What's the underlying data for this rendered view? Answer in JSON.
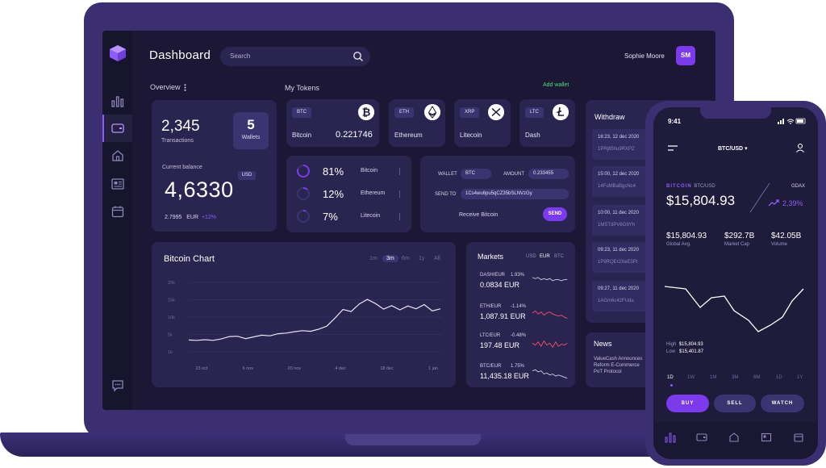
{
  "dashboard": {
    "title": "Dashboard",
    "search_placeholder": "Search",
    "user_name": "Sophie Moore",
    "user_initials": "SM"
  },
  "overview": {
    "label": "Overview",
    "transactions_value": "2,345",
    "transactions_label": "Transactions",
    "wallets_value": "5",
    "wallets_label": "Wallets",
    "current_balance_label": "Current balance",
    "currency_badge": "USD",
    "balance_value": "4,6330",
    "sub_amount": "2.7995",
    "sub_currency": "EUR",
    "sub_change": "+12%"
  },
  "tokens": {
    "label": "My Tokens",
    "add_wallet": "Add wallet",
    "items": [
      {
        "symbol": "BTC",
        "name": "Bitcoin",
        "value": "0.221746",
        "icon": "bitcoin-icon"
      },
      {
        "symbol": "ETH",
        "name": "Ethereum",
        "value": "",
        "icon": "ethereum-icon"
      },
      {
        "symbol": "XRP",
        "name": "Litecoin",
        "value": "",
        "icon": "xrp-icon"
      },
      {
        "symbol": "LTC",
        "name": "Dash",
        "value": "",
        "icon": "litecoin-icon"
      }
    ]
  },
  "allocation": [
    {
      "percent": "81%",
      "coin": "Bitcoin",
      "fraction": 0.81
    },
    {
      "percent": "12%",
      "coin": "Ethereum",
      "fraction": 0.12
    },
    {
      "percent": "7%",
      "coin": "Litecoin",
      "fraction": 0.07
    }
  ],
  "send": {
    "wallet_label": "WALLET",
    "wallet_value": "BTC",
    "amount_label": "AMOUNT",
    "amount_value": "0.233455",
    "send_to_label": "SEND TO",
    "send_to_value": "1Cs4wu6pu5qCZ35bSLNVzGy",
    "receive_label": "Receive Bitcoin",
    "send_button": "SEND"
  },
  "bitcoin_chart": {
    "title": "Bitcoin Chart",
    "ranges": [
      "1m",
      "3m",
      "6m",
      "1y",
      "All"
    ],
    "active_range": "3m",
    "y_ticks": [
      "20k",
      "15k",
      "10k",
      "5k",
      "1k"
    ],
    "x_ticks": [
      "23 oct",
      "6 nov",
      "20 nov",
      "4 dec",
      "18 dec",
      "1 jan"
    ]
  },
  "chart_data": {
    "type": "line",
    "title": "Bitcoin Chart",
    "xlabel": "",
    "ylabel": "",
    "x_ticks": [
      "23 oct",
      "6 nov",
      "20 nov",
      "4 dec",
      "18 dec",
      "1 jan"
    ],
    "y_ticks": [
      "1k",
      "5k",
      "10k",
      "15k",
      "20k"
    ],
    "ylim": [
      0,
      20000
    ],
    "values": [
      3400,
      3300,
      3500,
      3300,
      3700,
      4400,
      4500,
      3800,
      4300,
      4800,
      4600,
      5200,
      5400,
      5800,
      6100,
      5900,
      6500,
      7400,
      9700,
      12200,
      11600,
      13800,
      15100,
      13900,
      12300,
      13300,
      12100,
      13200,
      12400,
      13600,
      11800,
      12400
    ]
  },
  "markets": {
    "title": "Markets",
    "currencies": [
      "USD",
      "EUR",
      "BTC"
    ],
    "active_currency": "EUR",
    "items": [
      {
        "pair": "DASH/EUR",
        "change": "1.93%",
        "price": "0.0834",
        "currency": "EUR",
        "trend_color": "#cfcbe6"
      },
      {
        "pair": "ETH/EUR",
        "change": "-1.14%",
        "price": "1,087.91",
        "currency": "EUR",
        "trend_color": "#f0506e"
      },
      {
        "pair": "LTC/EUR",
        "change": "-0.48%",
        "price": "197.48",
        "currency": "EUR",
        "trend_color": "#f0506e"
      },
      {
        "pair": "BTC/EUR",
        "change": "1.75%",
        "price": "11,435.18",
        "currency": "EUR",
        "trend_color": "#cfcbe6"
      }
    ]
  },
  "withdraw": {
    "title": "Withdraw",
    "items": [
      {
        "date": "16:23, 12 dec 2020",
        "hash": "1PRj85hu9RXPZ"
      },
      {
        "date": "15:00, 12 dec 2020",
        "hash": "14FuMBaBgcNc4"
      },
      {
        "date": "10:00, 11 dec 2020",
        "hash": "1MSTdPV6G9Yh"
      },
      {
        "date": "09:23, 11 dec 2020",
        "hash": "1P9RQEr2XeE3Pt"
      },
      {
        "date": "09:27, 11 dec 2020",
        "hash": "1AGm6c42FUdu"
      }
    ]
  },
  "news": {
    "title": "News",
    "body": "ValueCash Announces Reform E-Commerce PoT Protocol"
  },
  "phone": {
    "time": "9:41",
    "pair": "BTC/USD",
    "coin_label": "BITCOIN",
    "coin_pair": "BTC/USD",
    "exchange": "GDAX",
    "price": "$15,804.93",
    "change": "2,39%",
    "stats": [
      {
        "value": "$15,804.93",
        "label": "Global Avg."
      },
      {
        "value": "$292.7B",
        "label": "Market Cap"
      },
      {
        "value": "$42.05B",
        "label": "Volume"
      }
    ],
    "high_label": "High",
    "high_value": "$15,804.93",
    "low_label": "Low",
    "low_value": "$15,401.87",
    "ranges": [
      "1D",
      "1W",
      "1M",
      "3M",
      "6M",
      "1D",
      "1Y"
    ],
    "buy": "BUY",
    "sell": "SELL",
    "watch": "WATCH"
  }
}
